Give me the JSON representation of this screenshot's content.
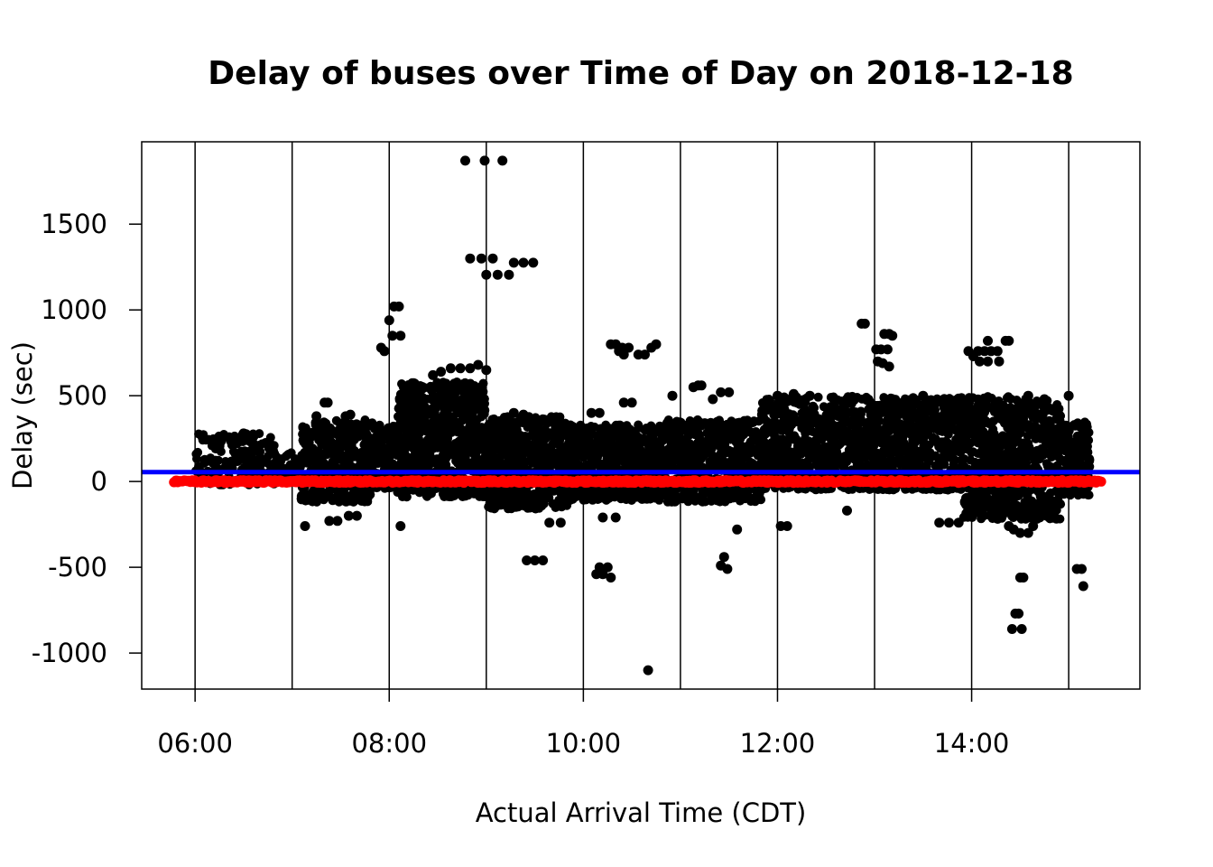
{
  "chart_data": {
    "type": "scatter",
    "title": "Delay of buses over Time of Day on 2018-12-18",
    "xlabel": "Actual Arrival Time (CDT)",
    "ylabel": "Delay (sec)",
    "xlim": [
      "05:27",
      "15:44"
    ],
    "ylim": [
      -1210,
      1980
    ],
    "x_ticks": [
      "06:00",
      "08:00",
      "10:00",
      "12:00",
      "14:00"
    ],
    "y_ticks": [
      1500,
      1000,
      500,
      0,
      -500,
      -1000
    ],
    "y_tick_labels": [
      "1500",
      "1000",
      "500",
      "0",
      "-500",
      "-1000"
    ],
    "vertical_gridlines": [
      "06:00",
      "07:00",
      "08:00",
      "09:00",
      "10:00",
      "11:00",
      "12:00",
      "13:00",
      "14:00",
      "15:00"
    ],
    "reference_line": {
      "value": 55,
      "color": "#0000ff"
    },
    "grid": "vertical-only",
    "legend": "none",
    "series": [
      {
        "color": "#000000",
        "outliers": [
          {
            "x": "08:47",
            "y": 1870
          },
          {
            "x": "08:59",
            "y": 1870
          },
          {
            "x": "09:10",
            "y": 1870
          },
          {
            "x": "08:50",
            "y": 1300
          },
          {
            "x": "08:57",
            "y": 1300
          },
          {
            "x": "09:04",
            "y": 1300
          },
          {
            "x": "09:00",
            "y": 1205
          },
          {
            "x": "09:07",
            "y": 1205
          },
          {
            "x": "09:14",
            "y": 1205
          },
          {
            "x": "09:17",
            "y": 1275
          },
          {
            "x": "09:23",
            "y": 1275
          },
          {
            "x": "09:29",
            "y": 1275
          },
          {
            "x": "08:03",
            "y": 1020
          },
          {
            "x": "08:06",
            "y": 1020
          },
          {
            "x": "08:00",
            "y": 940
          },
          {
            "x": "08:02",
            "y": 850
          },
          {
            "x": "08:07",
            "y": 850
          },
          {
            "x": "07:55",
            "y": 780
          },
          {
            "x": "07:57",
            "y": 760
          },
          {
            "x": "12:52",
            "y": 920
          },
          {
            "x": "12:54",
            "y": 920
          },
          {
            "x": "13:06",
            "y": 860
          },
          {
            "x": "13:09",
            "y": 860
          },
          {
            "x": "13:11",
            "y": 850
          },
          {
            "x": "13:01",
            "y": 770
          },
          {
            "x": "13:04",
            "y": 770
          },
          {
            "x": "13:08",
            "y": 770
          },
          {
            "x": "13:02",
            "y": 700
          },
          {
            "x": "13:05",
            "y": 690
          },
          {
            "x": "13:09",
            "y": 670
          },
          {
            "x": "14:10",
            "y": 820
          },
          {
            "x": "14:21",
            "y": 820
          },
          {
            "x": "14:23",
            "y": 820
          },
          {
            "x": "13:58",
            "y": 760
          },
          {
            "x": "14:01",
            "y": 730
          },
          {
            "x": "14:04",
            "y": 760
          },
          {
            "x": "14:08",
            "y": 760
          },
          {
            "x": "14:12",
            "y": 760
          },
          {
            "x": "14:16",
            "y": 760
          },
          {
            "x": "14:05",
            "y": 700
          },
          {
            "x": "14:10",
            "y": 700
          },
          {
            "x": "14:17",
            "y": 700
          },
          {
            "x": "10:17",
            "y": 800
          },
          {
            "x": "10:20",
            "y": 800
          },
          {
            "x": "10:24",
            "y": 780
          },
          {
            "x": "10:28",
            "y": 780
          },
          {
            "x": "10:34",
            "y": 740
          },
          {
            "x": "10:38",
            "y": 740
          },
          {
            "x": "10:42",
            "y": 780
          },
          {
            "x": "10:45",
            "y": 800
          },
          {
            "x": "10:22",
            "y": 760
          },
          {
            "x": "10:25",
            "y": 740
          },
          {
            "x": "08:27",
            "y": 620
          },
          {
            "x": "08:32",
            "y": 640
          },
          {
            "x": "08:38",
            "y": 660
          },
          {
            "x": "08:44",
            "y": 660
          },
          {
            "x": "08:50",
            "y": 660
          },
          {
            "x": "08:55",
            "y": 680
          },
          {
            "x": "09:00",
            "y": 650
          },
          {
            "x": "11:08",
            "y": 550
          },
          {
            "x": "11:11",
            "y": 560
          },
          {
            "x": "11:13",
            "y": 560
          },
          {
            "x": "10:55",
            "y": 500
          },
          {
            "x": "11:25",
            "y": 520
          },
          {
            "x": "11:30",
            "y": 520
          },
          {
            "x": "10:10",
            "y": -500
          },
          {
            "x": "10:15",
            "y": -500
          },
          {
            "x": "10:08",
            "y": -540
          },
          {
            "x": "10:12",
            "y": -540
          },
          {
            "x": "10:17",
            "y": -560
          },
          {
            "x": "09:25",
            "y": -460
          },
          {
            "x": "09:30",
            "y": -460
          },
          {
            "x": "09:35",
            "y": -460
          },
          {
            "x": "11:27",
            "y": -440
          },
          {
            "x": "11:25",
            "y": -490
          },
          {
            "x": "11:29",
            "y": -510
          },
          {
            "x": "11:35",
            "y": -280
          },
          {
            "x": "14:30",
            "y": -560
          },
          {
            "x": "14:32",
            "y": -560
          },
          {
            "x": "14:27",
            "y": -770
          },
          {
            "x": "14:29",
            "y": -770
          },
          {
            "x": "14:25",
            "y": -860
          },
          {
            "x": "14:31",
            "y": -860
          },
          {
            "x": "15:05",
            "y": -510
          },
          {
            "x": "15:08",
            "y": -510
          },
          {
            "x": "15:09",
            "y": -610
          },
          {
            "x": "10:40",
            "y": -1100
          },
          {
            "x": "07:08",
            "y": -260
          },
          {
            "x": "08:07",
            "y": -260
          },
          {
            "x": "07:23",
            "y": -230
          },
          {
            "x": "07:28",
            "y": -230
          },
          {
            "x": "07:35",
            "y": -200
          },
          {
            "x": "07:40",
            "y": -200
          },
          {
            "x": "09:39",
            "y": -240
          },
          {
            "x": "09:46",
            "y": -240
          },
          {
            "x": "10:12",
            "y": -210
          },
          {
            "x": "10:20",
            "y": -210
          },
          {
            "x": "12:02",
            "y": -260
          },
          {
            "x": "12:06",
            "y": -260
          },
          {
            "x": "12:43",
            "y": -170
          },
          {
            "x": "13:40",
            "y": -240
          },
          {
            "x": "13:46",
            "y": -240
          },
          {
            "x": "13:52",
            "y": -240
          },
          {
            "x": "14:12",
            "y": -200
          },
          {
            "x": "14:15",
            "y": -210
          },
          {
            "x": "14:23",
            "y": -260
          },
          {
            "x": "14:26",
            "y": -280
          },
          {
            "x": "14:30",
            "y": -300
          },
          {
            "x": "14:35",
            "y": -300
          },
          {
            "x": "14:38",
            "y": -260
          },
          {
            "x": "06:30",
            "y": 280
          },
          {
            "x": "06:35",
            "y": 260
          },
          {
            "x": "07:15",
            "y": 380
          },
          {
            "x": "07:20",
            "y": 460
          },
          {
            "x": "07:22",
            "y": 460
          },
          {
            "x": "07:33",
            "y": 380
          },
          {
            "x": "07:36",
            "y": 390
          },
          {
            "x": "09:17",
            "y": 400
          },
          {
            "x": "09:23",
            "y": 390
          },
          {
            "x": "10:05",
            "y": 400
          },
          {
            "x": "10:10",
            "y": 400
          },
          {
            "x": "10:25",
            "y": 460
          },
          {
            "x": "10:30",
            "y": 460
          },
          {
            "x": "11:20",
            "y": 480
          },
          {
            "x": "12:00",
            "y": 500
          },
          {
            "x": "12:10",
            "y": 510
          },
          {
            "x": "12:20",
            "y": 500
          },
          {
            "x": "13:30",
            "y": 500
          },
          {
            "x": "13:43",
            "y": 450
          },
          {
            "x": "14:35",
            "y": 500
          },
          {
            "x": "14:45",
            "y": 480
          },
          {
            "x": "15:00",
            "y": 500
          }
        ],
        "bands": [
          {
            "from": "06:00",
            "to": "06:50",
            "low": -20,
            "high": 280,
            "count": 170
          },
          {
            "from": "06:50",
            "to": "07:05",
            "low": 20,
            "high": 170,
            "count": 30
          },
          {
            "from": "07:05",
            "to": "07:50",
            "low": -120,
            "high": 360,
            "count": 420
          },
          {
            "from": "07:50",
            "to": "08:05",
            "low": -40,
            "high": 330,
            "count": 140
          },
          {
            "from": "08:05",
            "to": "09:00",
            "low": -90,
            "high": 580,
            "count": 720
          },
          {
            "from": "09:00",
            "to": "09:50",
            "low": -160,
            "high": 380,
            "count": 560
          },
          {
            "from": "09:50",
            "to": "10:50",
            "low": -110,
            "high": 330,
            "count": 620
          },
          {
            "from": "10:50",
            "to": "11:50",
            "low": -120,
            "high": 360,
            "count": 580
          },
          {
            "from": "11:50",
            "to": "12:55",
            "low": -50,
            "high": 500,
            "count": 620
          },
          {
            "from": "12:55",
            "to": "13:55",
            "low": -50,
            "high": 490,
            "count": 640
          },
          {
            "from": "13:55",
            "to": "14:55",
            "low": -220,
            "high": 500,
            "count": 680
          },
          {
            "from": "14:55",
            "to": "15:13",
            "low": -80,
            "high": 350,
            "count": 160
          }
        ]
      },
      {
        "color": "#ff0000",
        "band": {
          "from": "05:47",
          "to": "15:20",
          "low": -8,
          "high": 8,
          "count": 900
        }
      }
    ]
  }
}
